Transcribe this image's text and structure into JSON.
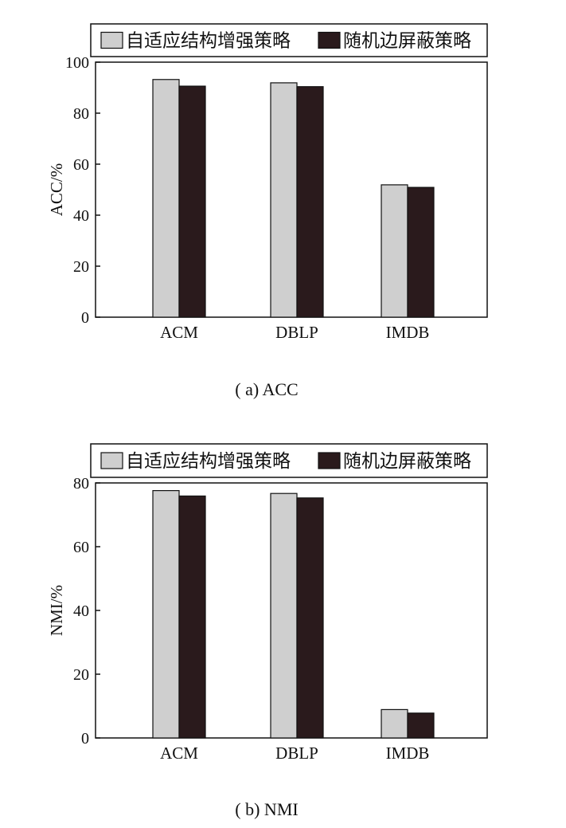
{
  "legend": {
    "series_a": "自适应结构增强策略",
    "series_b": "随机边屏蔽策略"
  },
  "colors": {
    "series_a": "#cfcfcf",
    "series_b": "#2a1a1c",
    "axis": "#111111"
  },
  "chart_data": [
    {
      "type": "bar",
      "caption": "( a) ACC",
      "ylabel": "ACC/%",
      "categories": [
        "ACM",
        "DBLP",
        "IMDB"
      ],
      "series": [
        {
          "name": "自适应结构增强策略",
          "values": [
            93.2,
            91.9,
            51.9
          ]
        },
        {
          "name": "随机边屏蔽策略",
          "values": [
            90.6,
            90.4,
            50.9
          ]
        }
      ],
      "ylim": [
        0,
        100
      ],
      "yticks": [
        0,
        20,
        40,
        60,
        80,
        100
      ],
      "grid": false,
      "legend_position": "top"
    },
    {
      "type": "bar",
      "caption": "( b) NMI",
      "ylabel": "NMI/%",
      "categories": [
        "ACM",
        "DBLP",
        "IMDB"
      ],
      "series": [
        {
          "name": "自适应结构增强策略",
          "values": [
            77.6,
            76.7,
            8.9
          ]
        },
        {
          "name": "随机边屏蔽策略",
          "values": [
            75.9,
            75.3,
            7.8
          ]
        }
      ],
      "ylim": [
        0,
        80
      ],
      "yticks": [
        0,
        20,
        40,
        60,
        80
      ],
      "grid": false,
      "legend_position": "top"
    }
  ]
}
